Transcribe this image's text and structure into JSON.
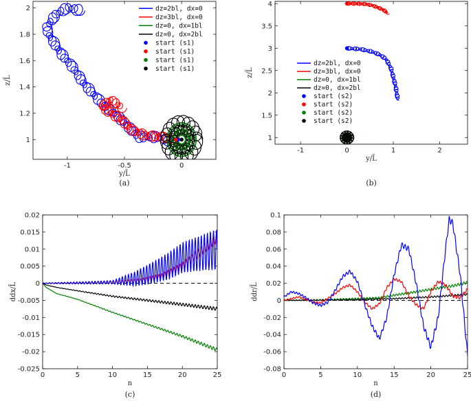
{
  "chart_data": [
    {
      "id": "a",
      "type": "line",
      "caption": "(a)",
      "xlabel": "y/L̄",
      "ylabel": "z/L̄",
      "xlim": [
        -1.3,
        0.3
      ],
      "ylim": [
        0.85,
        2.05
      ],
      "xticks": [
        -1,
        -0.5,
        0
      ],
      "xtick_labels": [
        "-1",
        "-0.5",
        "0"
      ],
      "yticks": [
        1,
        1.2,
        1.4,
        1.6,
        1.8,
        2
      ],
      "ytick_labels": [
        "1",
        "1.2",
        "1.4",
        "1.6",
        "1.8",
        "2"
      ],
      "legend": [
        "dz=2bl, dx=0",
        "dz=3bl, dx=0",
        "dz=0, dx=1bl",
        "dz=0, dx=2bl",
        "start (s1)",
        "start (s1)",
        "start (s1)",
        "start (s1)"
      ],
      "series": [
        {
          "name": "dz=2bl, dx=0",
          "color": "#0000ff",
          "path": [
            [
              -0.1,
              0.99
            ],
            [
              -0.22,
              1.02
            ],
            [
              -0.38,
              1.02
            ],
            [
              -0.55,
              1.17
            ],
            [
              -0.7,
              1.28
            ],
            [
              -0.85,
              1.42
            ],
            [
              -0.95,
              1.55
            ],
            [
              -1.05,
              1.65
            ],
            [
              -1.15,
              1.78
            ],
            [
              -1.18,
              1.85
            ],
            [
              -1.1,
              1.95
            ],
            [
              -1.0,
              2.0
            ],
            [
              -0.88,
              1.98
            ]
          ],
          "loop_r": 0.045,
          "loop_count": 58
        },
        {
          "name": "dz=3bl, dx=0",
          "color": "#ff0000",
          "path": [
            [
              -0.05,
              1.0
            ],
            [
              -0.18,
              1.02
            ],
            [
              -0.32,
              1.03
            ],
            [
              -0.45,
              1.08
            ],
            [
              -0.52,
              1.15
            ],
            [
              -0.62,
              1.2
            ],
            [
              -0.7,
              1.25
            ],
            [
              -0.62,
              1.3
            ],
            [
              -0.52,
              1.24
            ]
          ],
          "loop_r": 0.042,
          "loop_count": 38
        },
        {
          "name": "dz=0, dx=1bl",
          "color": "#008000",
          "center": [
            0.0,
            1.0
          ],
          "radius": 0.1,
          "loop_r": 0.03,
          "loop_count": 26
        },
        {
          "name": "dz=0, dx=2bl",
          "color": "#000000",
          "center": [
            0.0,
            1.0
          ],
          "radius": 0.14,
          "loop_r": 0.045,
          "loop_count": 18
        }
      ],
      "starts": [
        {
          "x": -0.03,
          "y": 1.0,
          "color": "#0000ff"
        },
        {
          "x": -0.05,
          "y": 1.0,
          "color": "#ff0000"
        },
        {
          "x": 0.0,
          "y": 1.0,
          "color": "#008000"
        },
        {
          "x": 0.0,
          "y": 1.0,
          "color": "#000000"
        }
      ]
    },
    {
      "id": "b",
      "type": "line",
      "caption": "(b)",
      "xlabel": "y/L̄",
      "ylabel": "z/L̄",
      "xlim": [
        -1.55,
        2.6
      ],
      "ylim": [
        0.85,
        4.05
      ],
      "xticks": [
        -1,
        0,
        1,
        2
      ],
      "xtick_labels": [
        "-1",
        "0",
        "1",
        "2"
      ],
      "yticks": [
        1,
        1.5,
        2,
        2.5,
        3,
        3.5,
        4
      ],
      "ytick_labels": [
        "1",
        "1.5",
        "2",
        "2.5",
        "3",
        "3.5",
        "4"
      ],
      "legend": [
        "dz=2bl, dx=0",
        "dz=3bl, dx=0",
        "dz=0, dx=1bl",
        "dz=0, dx=2bl",
        "start (s2)",
        "start (s2)",
        "start (s2)",
        "start (s2)"
      ],
      "series": [
        {
          "name": "dz=2bl, dx=0",
          "color": "#0000ff",
          "path": [
            [
              0.0,
              3.0
            ],
            [
              0.3,
              2.98
            ],
            [
              0.55,
              2.92
            ],
            [
              0.72,
              2.85
            ],
            [
              0.85,
              2.75
            ],
            [
              0.95,
              2.55
            ],
            [
              1.0,
              2.35
            ],
            [
              1.05,
              2.15
            ],
            [
              1.08,
              1.95
            ],
            [
              1.1,
              1.85
            ]
          ],
          "loop_r": 0.045,
          "loop_count": 44
        },
        {
          "name": "dz=3bl, dx=0",
          "color": "#ff0000",
          "path": [
            [
              0.0,
              4.0
            ],
            [
              0.2,
              4.0
            ],
            [
              0.4,
              3.99
            ],
            [
              0.55,
              3.96
            ],
            [
              0.7,
              3.9
            ],
            [
              0.8,
              3.85
            ],
            [
              0.88,
              3.78
            ]
          ],
          "loop_r": 0.04,
          "loop_count": 30
        },
        {
          "name": "dz=0, dx=1bl",
          "color": "#008000",
          "center": [
            0.0,
            1.0
          ],
          "radius": 0.07,
          "loop_r": 0.04,
          "loop_count": 26
        },
        {
          "name": "dz=0, dx=2bl",
          "color": "#000000",
          "center": [
            0.0,
            1.0
          ],
          "radius": 0.1,
          "loop_r": 0.05,
          "loop_count": 14
        }
      ],
      "starts": [
        {
          "x": 0.0,
          "y": 3.0,
          "color": "#0000ff"
        },
        {
          "x": 0.0,
          "y": 4.0,
          "color": "#ff0000"
        },
        {
          "x": 0.0,
          "y": 1.0,
          "color": "#008000"
        },
        {
          "x": 0.0,
          "y": 1.0,
          "color": "#000000"
        }
      ]
    },
    {
      "id": "c",
      "type": "line",
      "caption": "(c)",
      "xlabel": "n",
      "ylabel": "ddx/L̄",
      "xlim": [
        0,
        25
      ],
      "ylim": [
        -0.025,
        0.02
      ],
      "xticks": [
        0,
        5,
        10,
        15,
        20,
        25
      ],
      "xtick_labels": [
        "0",
        "5",
        "10",
        "15",
        "20",
        "25"
      ],
      "yticks": [
        -0.025,
        -0.02,
        -0.015,
        -0.01,
        -0.005,
        0,
        0.005,
        0.01,
        0.015,
        0.02
      ],
      "ytick_labels": [
        "-0.025",
        "-0.02",
        "-0.015",
        "-0.01",
        "-0.005",
        "0",
        "0.005",
        "0.01",
        "0.015",
        "0.02"
      ],
      "reference_line": {
        "y": 0,
        "style": "dashed"
      },
      "series": [
        {
          "name": "dz=2bl, dx=0",
          "color": "#0000ff",
          "points": [
            [
              0,
              0
            ],
            [
              5,
              0.0001
            ],
            [
              10,
              0.0003
            ],
            [
              13,
              0.0012
            ],
            [
              15,
              0.0025
            ],
            [
              18,
              0.005
            ],
            [
              20,
              0.0075
            ],
            [
              22,
              0.0085
            ],
            [
              24,
              0.0095
            ],
            [
              25,
              0.0098
            ]
          ],
          "osc_amp": [
            [
              0,
              0.0001
            ],
            [
              10,
              0.0005
            ],
            [
              14,
              0.0025
            ],
            [
              18,
              0.004
            ],
            [
              22,
              0.005
            ],
            [
              25,
              0.006
            ]
          ],
          "osc_freq": 2.3
        },
        {
          "name": "dz=3bl, dx=0",
          "color": "#ff0000",
          "points": [
            [
              0,
              0
            ],
            [
              5,
              0.0001
            ],
            [
              10,
              0.0002
            ],
            [
              14,
              0.0008
            ],
            [
              17,
              0.002
            ],
            [
              20,
              0.005
            ],
            [
              23,
              0.01
            ],
            [
              25,
              0.0135
            ]
          ],
          "osc_amp": [
            [
              0,
              0.0001
            ],
            [
              14,
              0.0005
            ],
            [
              20,
              0.001
            ],
            [
              25,
              0.0015
            ]
          ],
          "osc_freq": 2.3
        },
        {
          "name": "dz=0, dx=1bl",
          "color": "#008000",
          "points": [
            [
              0,
              0
            ],
            [
              0.5,
              -0.0012
            ],
            [
              2,
              -0.003
            ],
            [
              5,
              -0.0047
            ],
            [
              10,
              -0.0085
            ],
            [
              15,
              -0.012
            ],
            [
              20,
              -0.0155
            ],
            [
              25,
              -0.0195
            ]
          ],
          "osc_amp": [
            [
              0,
              0.0
            ],
            [
              15,
              0.0002
            ],
            [
              25,
              0.0005
            ]
          ],
          "osc_freq": 2.3
        },
        {
          "name": "dz=0, dx=2bl",
          "color": "#000000",
          "points": [
            [
              0,
              0
            ],
            [
              0.5,
              -0.0005
            ],
            [
              2,
              -0.0012
            ],
            [
              5,
              -0.0022
            ],
            [
              10,
              -0.0038
            ],
            [
              15,
              -0.005
            ],
            [
              20,
              -0.0062
            ],
            [
              25,
              -0.0075
            ]
          ],
          "osc_amp": [
            [
              0,
              0.0
            ],
            [
              15,
              0.0003
            ],
            [
              25,
              0.0005
            ]
          ],
          "osc_freq": 2.3
        }
      ]
    },
    {
      "id": "d",
      "type": "line",
      "caption": "(d)",
      "xlabel": "n",
      "ylabel": "ddr/L̄",
      "xlim": [
        0,
        25
      ],
      "ylim": [
        -0.08,
        0.1
      ],
      "xticks": [
        0,
        5,
        10,
        15,
        20,
        25
      ],
      "xtick_labels": [
        "0",
        "5",
        "10",
        "15",
        "20",
        "25"
      ],
      "yticks": [
        -0.08,
        -0.06,
        -0.04,
        -0.02,
        0,
        0.02,
        0.04,
        0.06,
        0.08,
        0.1
      ],
      "ytick_labels": [
        "-0.08",
        "-0.06",
        "-0.04",
        "-0.02",
        "0",
        "0.02",
        "0.04",
        "0.06",
        "0.08",
        "0.1"
      ],
      "reference_line": {
        "y": 0,
        "style": "dashed"
      },
      "series": [
        {
          "name": "dz=2bl, dx=0",
          "color": "#0000ff",
          "points": [
            [
              0,
              0.004
            ],
            [
              1,
              0.01
            ],
            [
              2,
              0.008
            ],
            [
              3,
              0.003
            ],
            [
              4,
              -0.003
            ],
            [
              5,
              -0.006
            ],
            [
              6,
              -0.002
            ],
            [
              7,
              0.012
            ],
            [
              8,
              0.028
            ],
            [
              9,
              0.034
            ],
            [
              10,
              0.022
            ],
            [
              11,
              -0.005
            ],
            [
              12,
              -0.03
            ],
            [
              13,
              -0.045
            ],
            [
              14,
              -0.02
            ],
            [
              15,
              0.03
            ],
            [
              16,
              0.065
            ],
            [
              17,
              0.06
            ],
            [
              18,
              0.02
            ],
            [
              19,
              -0.03
            ],
            [
              20,
              -0.055
            ],
            [
              21,
              -0.02
            ],
            [
              22,
              0.06
            ],
            [
              22.5,
              0.095
            ],
            [
              23,
              0.09
            ],
            [
              24,
              0.03
            ],
            [
              25,
              -0.065
            ]
          ],
          "osc_amp": [
            [
              0,
              0.001
            ],
            [
              10,
              0.002
            ],
            [
              25,
              0.004
            ]
          ],
          "osc_freq": 2.5
        },
        {
          "name": "dz=3bl, dx=0",
          "color": "#ff0000",
          "points": [
            [
              0,
              0
            ],
            [
              2,
              0.004
            ],
            [
              4,
              -0.002
            ],
            [
              5,
              -0.003
            ],
            [
              7,
              0.008
            ],
            [
              8,
              0.015
            ],
            [
              9,
              0.018
            ],
            [
              10,
              0.01
            ],
            [
              11,
              -0.002
            ],
            [
              12,
              -0.01
            ],
            [
              13,
              -0.004
            ],
            [
              14,
              0.015
            ],
            [
              15,
              0.025
            ],
            [
              16,
              0.022
            ],
            [
              17,
              0.005
            ],
            [
              18,
              -0.005
            ],
            [
              19,
              -0.01
            ],
            [
              20,
              0.01
            ],
            [
              21,
              0.022
            ],
            [
              22,
              0.018
            ],
            [
              23,
              0.005
            ],
            [
              24,
              0.003
            ],
            [
              25,
              0.013
            ]
          ],
          "osc_amp": [
            [
              0,
              0.0008
            ],
            [
              25,
              0.0018
            ]
          ],
          "osc_freq": 2.5
        },
        {
          "name": "dz=0, dx=1bl",
          "color": "#008000",
          "points": [
            [
              0,
              0
            ],
            [
              5,
              0.0005
            ],
            [
              10,
              0.002
            ],
            [
              13,
              0.003
            ],
            [
              15,
              0.006
            ],
            [
              18,
              0.01
            ],
            [
              20,
              0.013
            ],
            [
              23,
              0.017
            ],
            [
              25,
              0.021
            ]
          ],
          "osc_amp": [
            [
              0,
              0.0005
            ],
            [
              25,
              0.0015
            ]
          ],
          "osc_freq": 2.5
        },
        {
          "name": "dz=0, dx=2bl",
          "color": "#000000",
          "points": [
            [
              0,
              0
            ],
            [
              5,
              0.0002
            ],
            [
              10,
              0.0008
            ],
            [
              15,
              0.002
            ],
            [
              20,
              0.004
            ],
            [
              25,
              0.007
            ]
          ],
          "osc_amp": [
            [
              0,
              0.0003
            ],
            [
              25,
              0.001
            ]
          ],
          "osc_freq": 2.5
        }
      ]
    }
  ]
}
